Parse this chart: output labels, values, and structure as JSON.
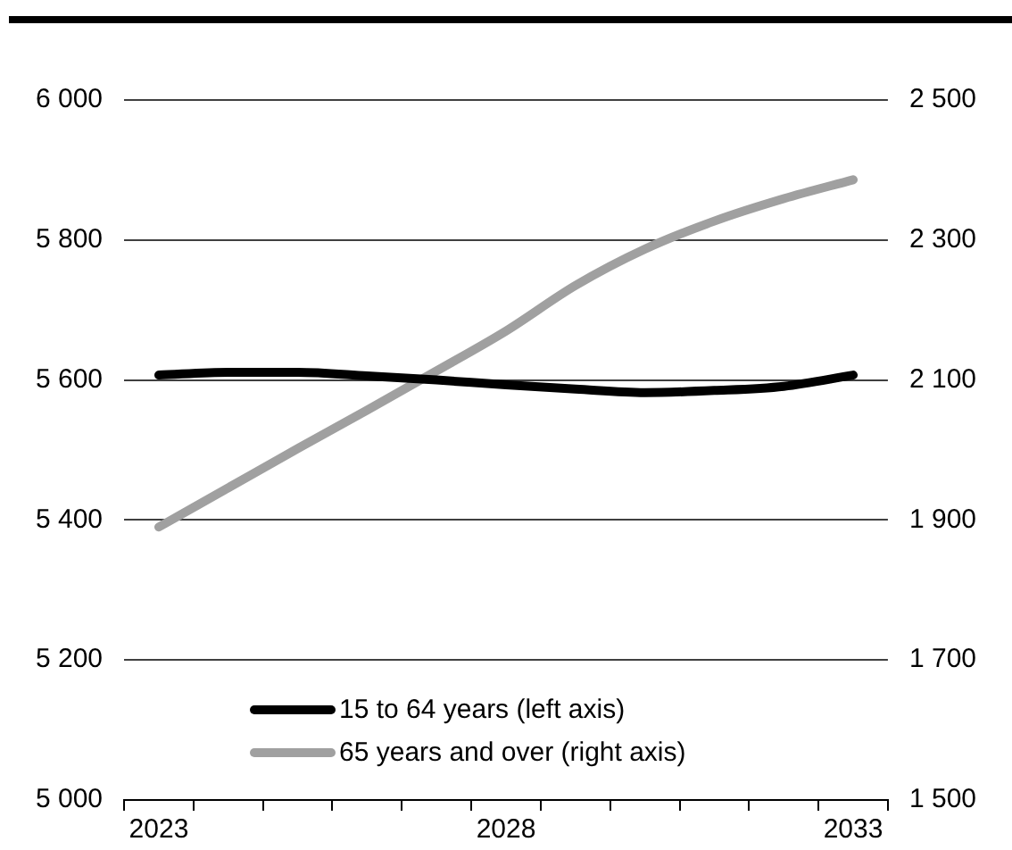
{
  "chart_data": {
    "type": "line",
    "categories": [
      "2023",
      null,
      null,
      null,
      null,
      "2028",
      null,
      null,
      null,
      null,
      "2033"
    ],
    "series": [
      {
        "name": "15 to 64 years (left axis)",
        "color": "#000000",
        "values": [
          5607,
          5611,
          5611,
          5606,
          5600,
          5593,
          5587,
          5582,
          5585,
          5591,
          5607
        ]
      },
      {
        "name": "65 years and over (right axis)",
        "color": "#a0a0a0",
        "axis": "y2",
        "values": [
          1890,
          1946,
          2002,
          2057,
          2113,
          2170,
          2235,
          2287,
          2327,
          2359,
          2386
        ]
      }
    ],
    "ylim": [
      5000,
      6000
    ],
    "yticks": [
      {
        "value": 5000,
        "label": "5 000"
      },
      {
        "value": 5200,
        "label": "5 200"
      },
      {
        "value": 5400,
        "label": "5 400"
      },
      {
        "value": 5600,
        "label": "5 600"
      },
      {
        "value": 5800,
        "label": "5 800"
      },
      {
        "value": 6000,
        "label": "6 000"
      }
    ],
    "y2lim": [
      1500,
      2500
    ],
    "y2ticks": [
      {
        "value": 1500,
        "label": "1 500"
      },
      {
        "value": 1700,
        "label": "1 700"
      },
      {
        "value": 1900,
        "label": "1 900"
      },
      {
        "value": 2100,
        "label": "2 100"
      },
      {
        "value": 2300,
        "label": "2 300"
      },
      {
        "value": 2500,
        "label": "2 500"
      }
    ],
    "grid": "y",
    "legend": "bottom left",
    "marker": "none",
    "line_style": "solid"
  }
}
